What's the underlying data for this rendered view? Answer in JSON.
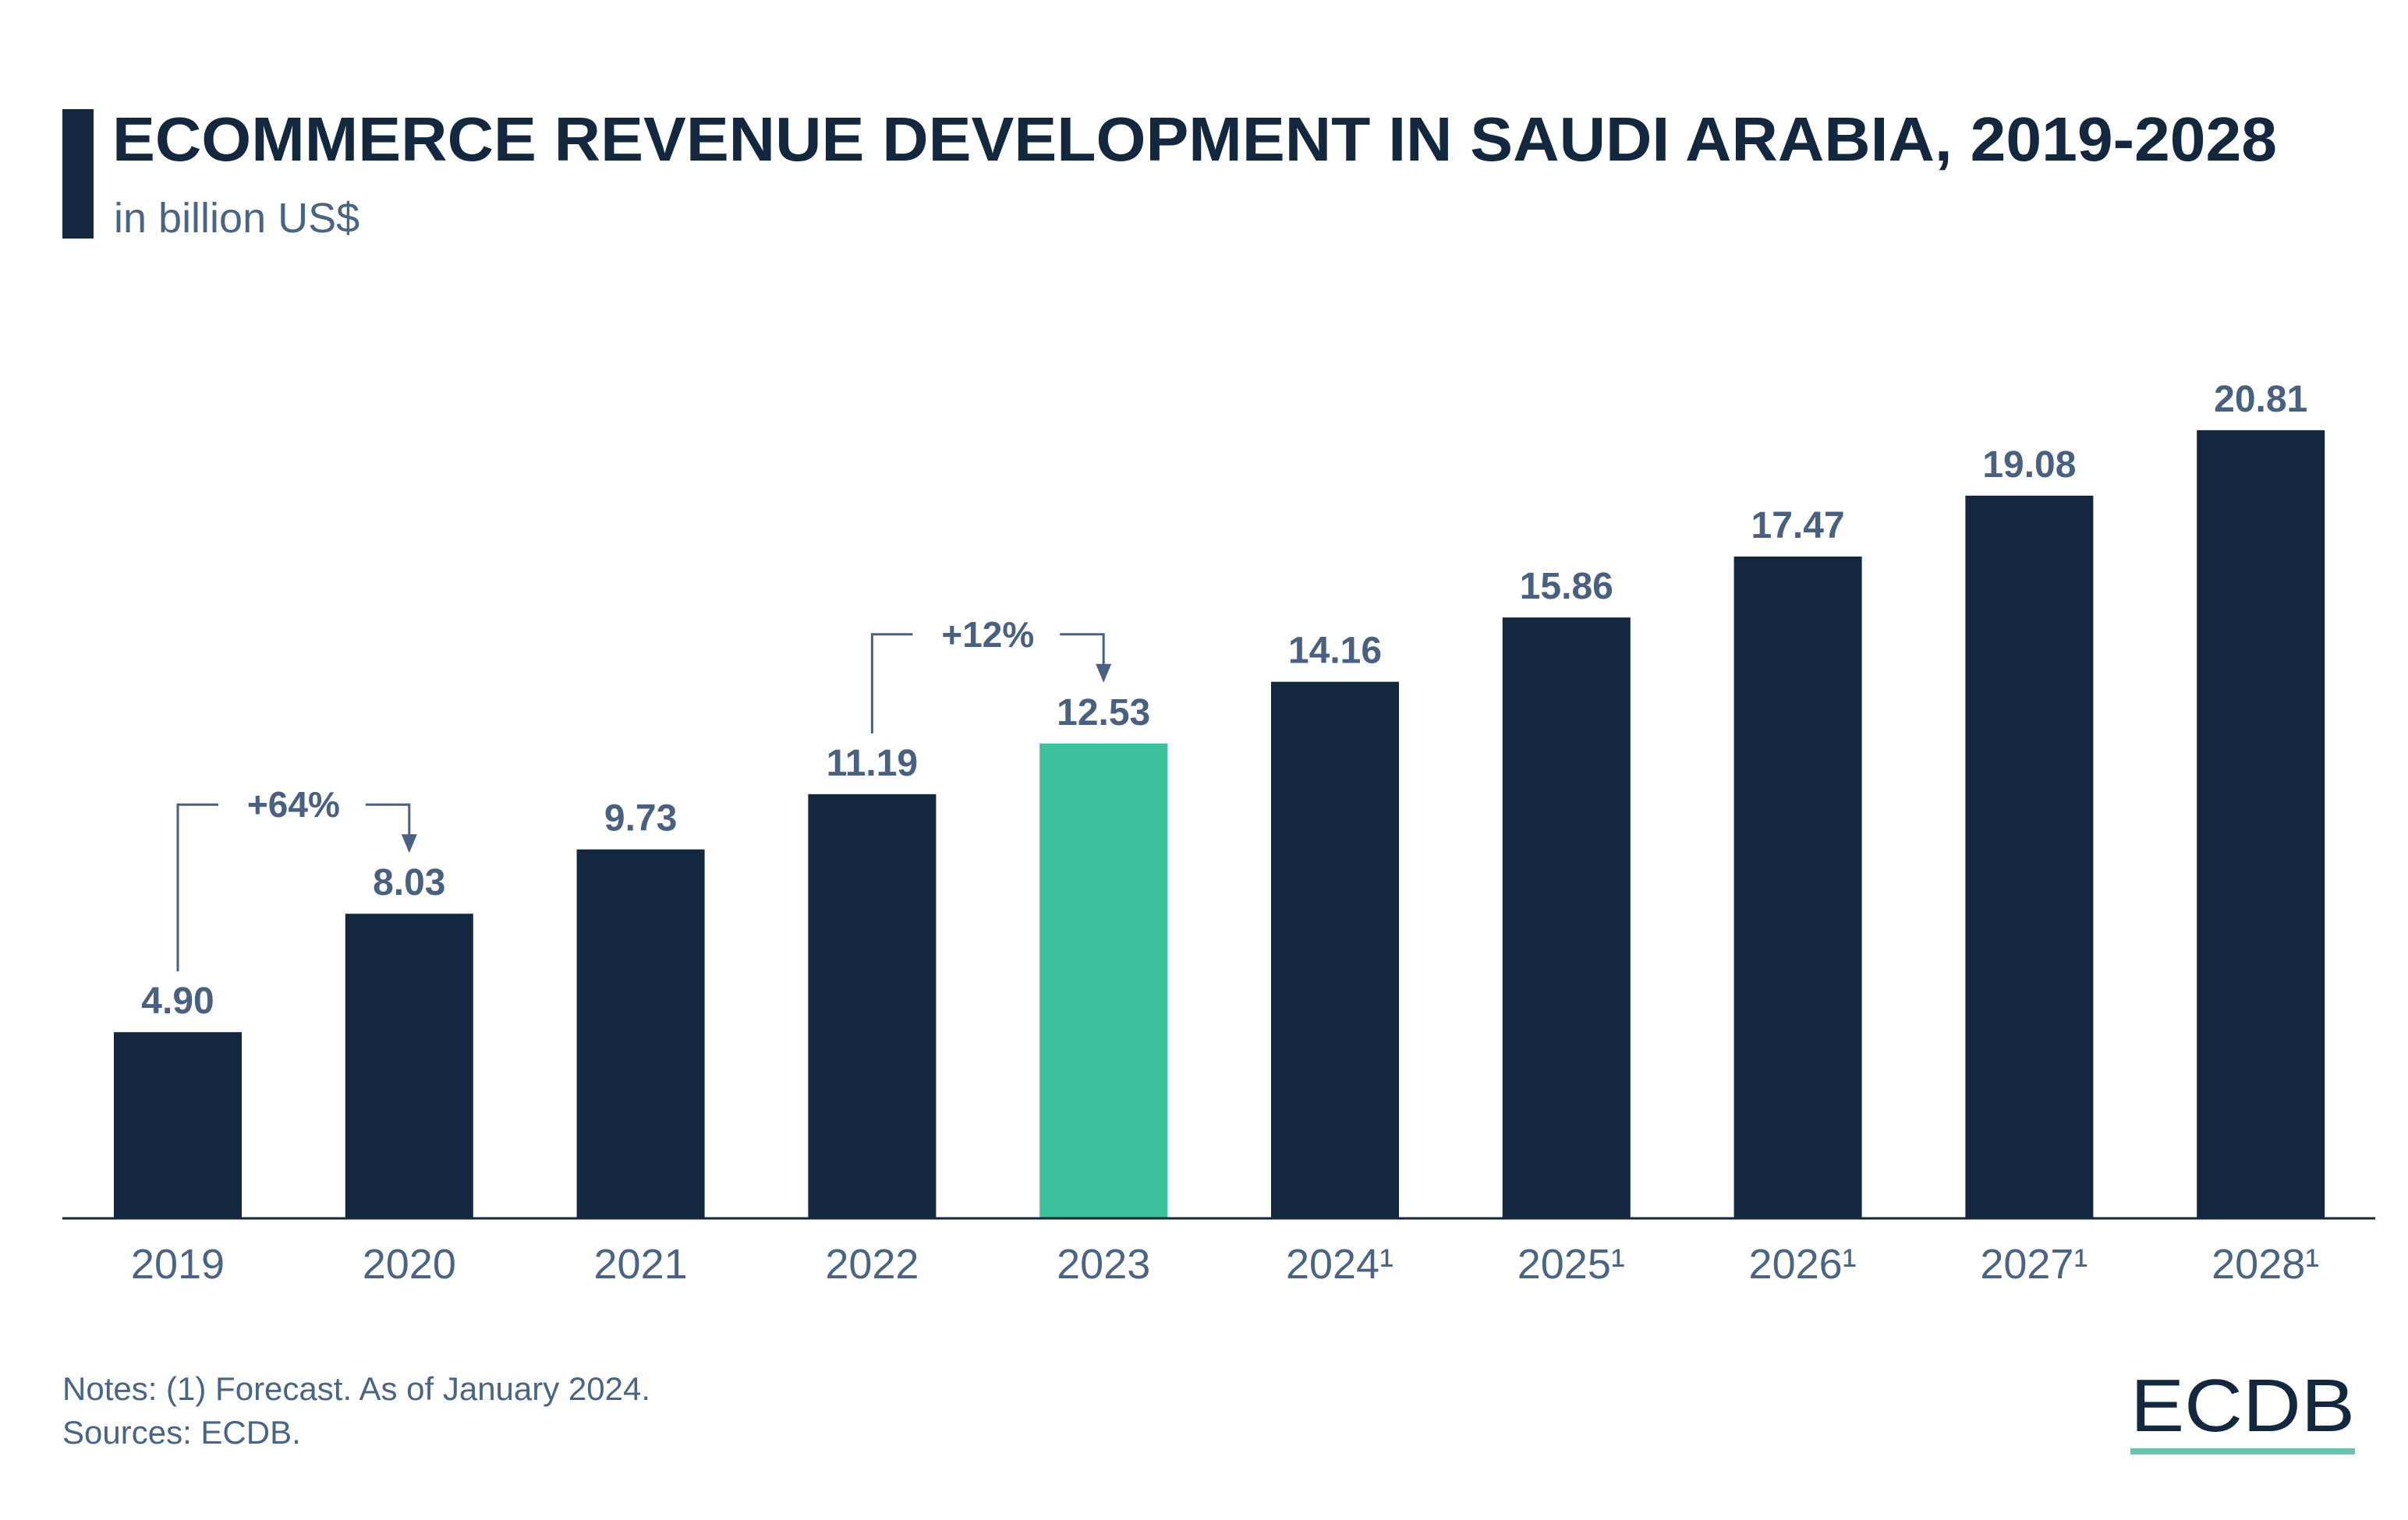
{
  "header": {
    "title": "ECOMMERCE REVENUE DEVELOPMENT IN SAUDI ARABIA, 2019-2028",
    "subtitle": "in billion US$"
  },
  "chart_data": {
    "type": "bar",
    "title": "ECOMMERCE REVENUE DEVELOPMENT IN SAUDI ARABIA, 2019-2028",
    "subtitle": "in billion US$",
    "categories": [
      "2019",
      "2020",
      "2021",
      "2022",
      "2023",
      "2024¹",
      "2025¹",
      "2026¹",
      "2027¹",
      "2028¹"
    ],
    "values": [
      4.9,
      8.03,
      9.73,
      11.19,
      12.53,
      14.16,
      15.86,
      17.47,
      19.08,
      20.81
    ],
    "value_labels": [
      "4.90",
      "8.03",
      "9.73",
      "11.19",
      "12.53",
      "14.16",
      "15.86",
      "17.47",
      "19.08",
      "20.81"
    ],
    "highlight_category": "2023",
    "ylim": [
      0,
      21
    ],
    "grid": false,
    "colors": {
      "bar": "#13273f",
      "highlight": "#3dc19c",
      "text": "#4a6080"
    },
    "annotations": [
      {
        "from": "2019",
        "to": "2020",
        "label": "+64%"
      },
      {
        "from": "2022",
        "to": "2023",
        "label": "+12%"
      }
    ]
  },
  "footer": {
    "notes": "Notes: (1) Forecast. As of January 2024.",
    "sources": "Sources: ECDB.",
    "logo": "ECDB"
  }
}
